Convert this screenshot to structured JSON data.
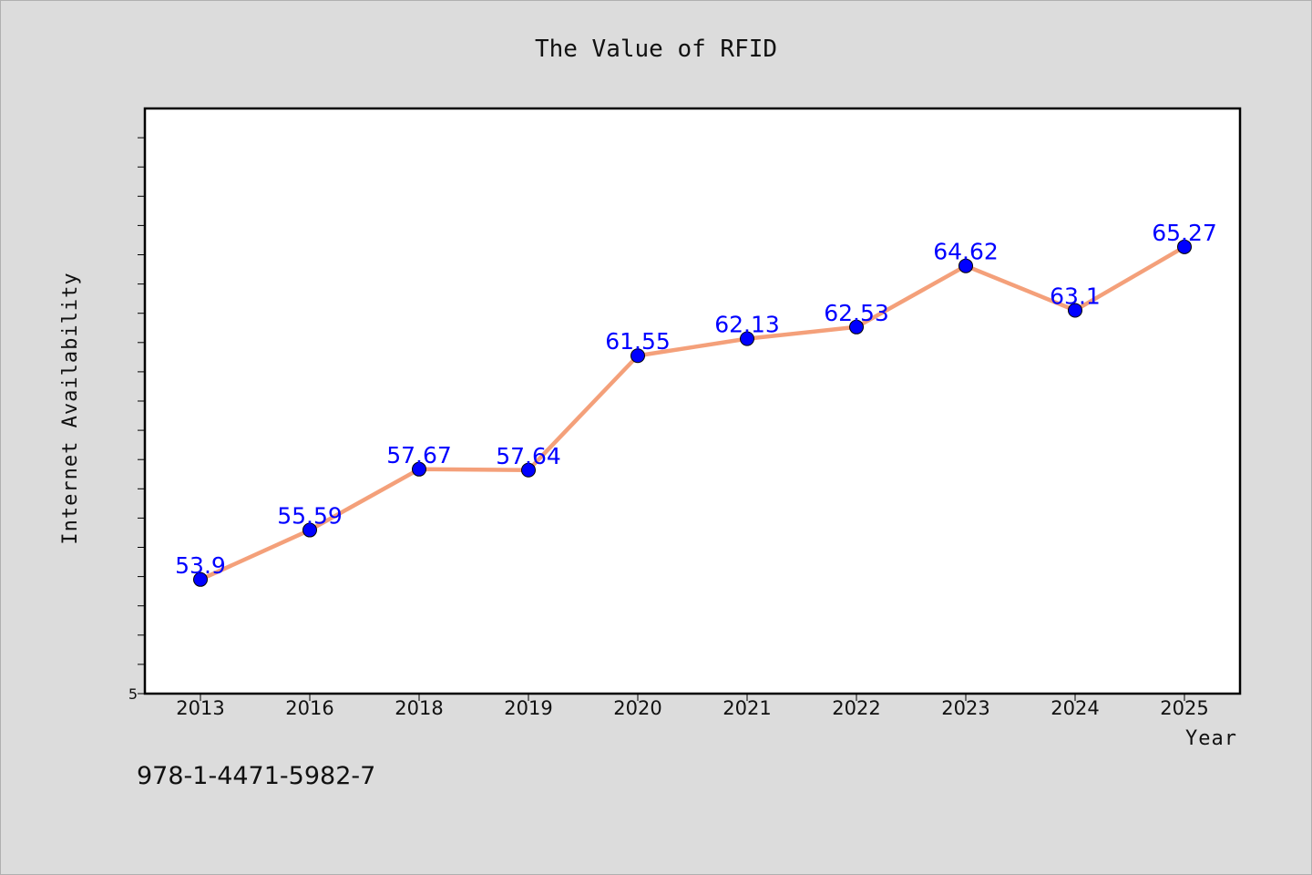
{
  "chart_data": {
    "type": "line",
    "title": "The Value of RFID",
    "xlabel": "Year",
    "ylabel": "Internet Availability",
    "categories": [
      "2013",
      "2016",
      "2018",
      "2019",
      "2020",
      "2021",
      "2022",
      "2023",
      "2024",
      "2025"
    ],
    "series": [
      {
        "values": [
          53.9,
          55.59,
          57.67,
          57.64,
          61.55,
          62.13,
          62.53,
          64.62,
          63.1,
          65.27
        ]
      }
    ],
    "data_labels": [
      "53.9",
      "55.59",
      "57.67",
      "57.64",
      "61.55",
      "62.13",
      "62.53",
      "64.62",
      "63.1",
      "65.27"
    ],
    "y_tick_labels": [
      "5"
    ],
    "ylim": [
      50,
      70
    ],
    "grid": false,
    "line_color": "#f4a07a",
    "marker_color": "#0000ff",
    "label_color": "#0000ff"
  },
  "footer": {
    "isbn": "978-1-4471-5982-7"
  }
}
